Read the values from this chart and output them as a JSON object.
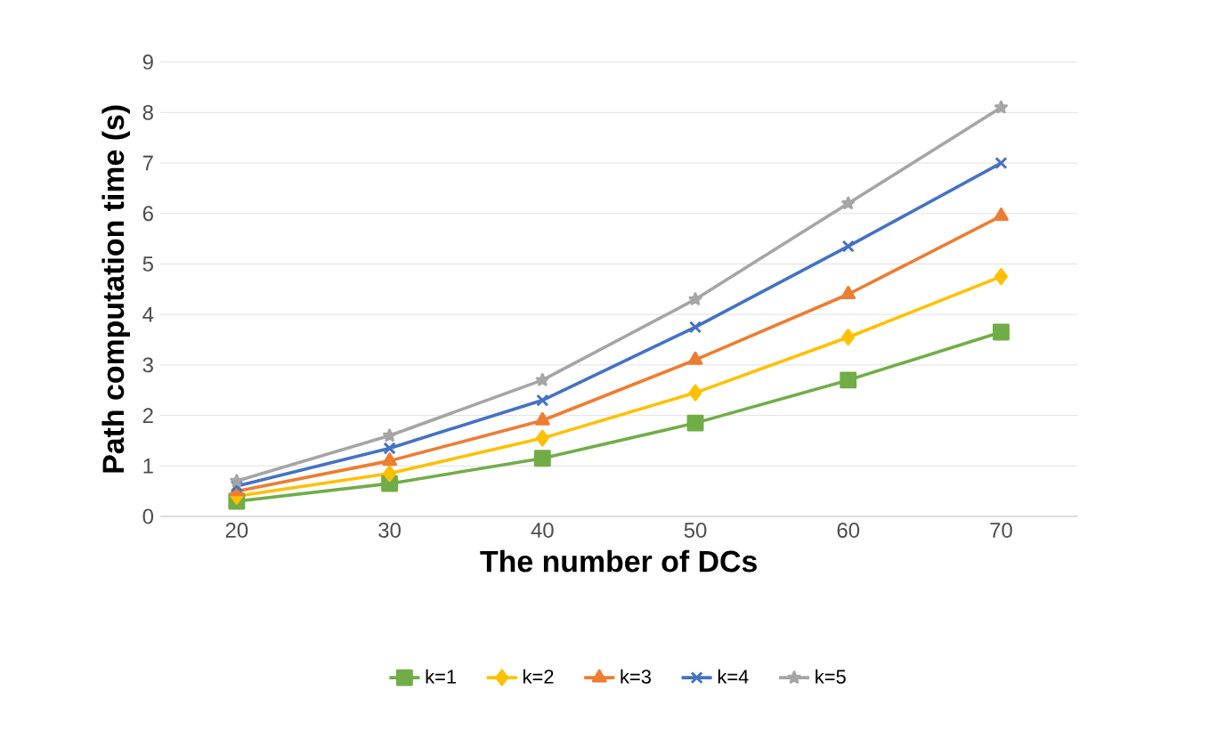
{
  "chart_data": {
    "type": "line",
    "xlabel": "The number of DCs",
    "ylabel": "Path computation time (s)",
    "categories": [
      "20",
      "30",
      "40",
      "50",
      "60",
      "70"
    ],
    "series": [
      {
        "name": "k=1",
        "color": "#70ad47",
        "marker": "square",
        "values": [
          0.3,
          0.65,
          1.15,
          1.85,
          2.7,
          3.65
        ]
      },
      {
        "name": "k=2",
        "color": "#ffc000",
        "marker": "diamond",
        "values": [
          0.4,
          0.85,
          1.55,
          2.45,
          3.55,
          4.75
        ]
      },
      {
        "name": "k=3",
        "color": "#ed7d31",
        "marker": "triangle",
        "values": [
          0.5,
          1.1,
          1.9,
          3.1,
          4.4,
          5.95
        ]
      },
      {
        "name": "k=4",
        "color": "#4472c4",
        "marker": "cross",
        "values": [
          0.6,
          1.35,
          2.3,
          3.75,
          5.35,
          7.0
        ]
      },
      {
        "name": "k=5",
        "color": "#a5a5a5",
        "marker": "star",
        "values": [
          0.7,
          1.6,
          2.7,
          4.3,
          6.2,
          8.1
        ]
      }
    ],
    "ylim": [
      0,
      9
    ],
    "yticks": [
      0,
      1,
      2,
      3,
      4,
      5,
      6,
      7,
      8,
      9
    ],
    "grid": "y",
    "legend": "bottom",
    "line_style": "solid"
  }
}
